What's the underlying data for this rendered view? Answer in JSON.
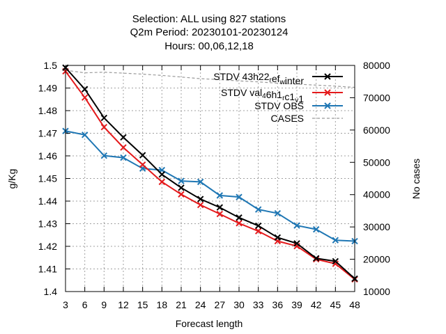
{
  "chart_data": {
    "type": "line",
    "title": [
      "Selection: ALL using   827 stations",
      "Q2m   Period: 20230101-20230124",
      "Hours:  00,06,12,18"
    ],
    "xlabel": "Forecast length",
    "ylabel": "g/Kg",
    "y2label": "No cases",
    "x": [
      3,
      6,
      9,
      12,
      15,
      18,
      21,
      24,
      27,
      30,
      33,
      36,
      39,
      42,
      45,
      48
    ],
    "xlim": [
      3,
      48
    ],
    "ylim": [
      1.4,
      1.5
    ],
    "y2lim": [
      10000,
      80000
    ],
    "yticks": [
      "1.4",
      "1.41",
      "1.42",
      "1.43",
      "1.44",
      "1.45",
      "1.46",
      "1.47",
      "1.48",
      "1.49",
      "1.5"
    ],
    "y2ticks": [
      "10000",
      "20000",
      "30000",
      "40000",
      "50000",
      "60000",
      "70000",
      "80000"
    ],
    "grid": true,
    "legend_position": "top-right",
    "series": [
      {
        "name": "STDV 43h22_ref_winter",
        "legend": {
          "pre": "STDV 43h22",
          "sub1": "r",
          "mid": "ef",
          "sub2": "w",
          "post": "inter"
        },
        "axis": "y1",
        "color": "#000000",
        "marker": "x",
        "values": [
          1.499,
          1.4895,
          1.4768,
          1.4682,
          1.4603,
          1.4518,
          1.4459,
          1.4409,
          1.4372,
          1.4327,
          1.4291,
          1.4239,
          1.4213,
          1.4147,
          1.4134,
          1.4057
        ]
      },
      {
        "name": "STDV val_46h1_c1_v1",
        "legend": {
          "pre": "STDV val",
          "sub1": "4",
          "mid": "6h1",
          "sub2": "r",
          "mid2": "c1",
          "sub3": "v",
          "post": "1"
        },
        "axis": "y1",
        "color": "#e41a1c",
        "marker": "x",
        "values": [
          1.4974,
          1.4858,
          1.4727,
          1.4637,
          1.4561,
          1.4485,
          1.443,
          1.4383,
          1.4343,
          1.4302,
          1.4267,
          1.4223,
          1.4201,
          1.4143,
          1.4123,
          1.4054
        ]
      },
      {
        "name": "STDV OBS",
        "legend": {
          "pre": "STDV OBS"
        },
        "axis": "y1",
        "color": "#1f77b4",
        "marker": "x",
        "values": [
          1.471,
          1.4693,
          1.4601,
          1.4592,
          1.4544,
          1.4537,
          1.4489,
          1.4485,
          1.4425,
          1.4418,
          1.4363,
          1.4346,
          1.4292,
          1.4275,
          1.4227,
          1.4223
        ]
      },
      {
        "name": "CASES",
        "legend": {
          "pre": "CASES"
        },
        "axis": "y2",
        "color": "#999999",
        "marker": "none",
        "dashed": true,
        "values": [
          78500,
          77700,
          77900,
          77600,
          77300,
          76900,
          76400,
          75900,
          75600,
          75200,
          74900,
          74500,
          74200,
          73900,
          73600,
          73200
        ]
      }
    ]
  }
}
